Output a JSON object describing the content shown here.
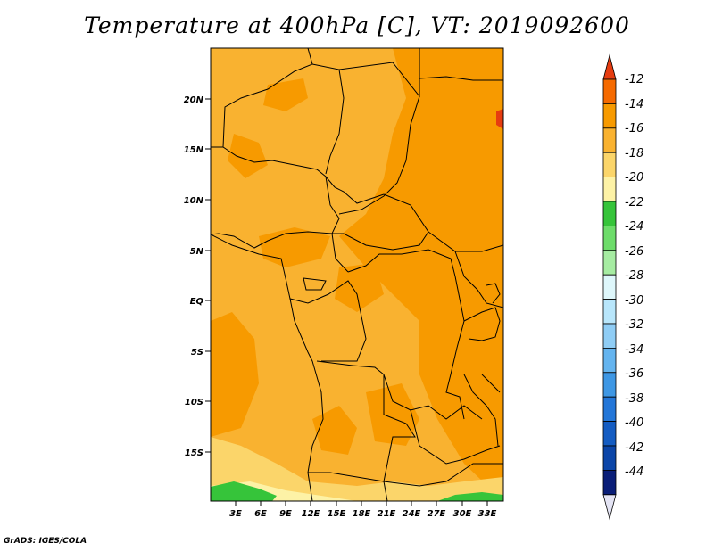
{
  "title": "Temperature at 400hPa [C], VT: 2019092600",
  "footer": "GrADS: IGES/COLA",
  "map": {
    "lat_labels": [
      "20N",
      "15N",
      "10N",
      "5N",
      "EQ",
      "5S",
      "10S",
      "15S"
    ],
    "lon_labels": [
      "3E",
      "6E",
      "9E",
      "12E",
      "15E",
      "18E",
      "21E",
      "24E",
      "27E",
      "30E",
      "33E"
    ]
  },
  "colorbar": {
    "labels": [
      "-12",
      "-14",
      "-16",
      "-18",
      "-20",
      "-22",
      "-24",
      "-26",
      "-28",
      "-30",
      "-32",
      "-34",
      "-36",
      "-38",
      "-40",
      "-42",
      "-44"
    ],
    "colors": [
      "#e63c10",
      "#f56a00",
      "#f79a00",
      "#f9b230",
      "#fbd56a",
      "#fdf2a6",
      "#36c43a",
      "#6ddc6a",
      "#a6eca2",
      "#def7fb",
      "#b8e6fb",
      "#8fcdf5",
      "#64b4ef",
      "#3e97e4",
      "#2376d8",
      "#145cc2",
      "#0b45a8",
      "#0a1e78",
      "#e4e4f4"
    ]
  }
}
